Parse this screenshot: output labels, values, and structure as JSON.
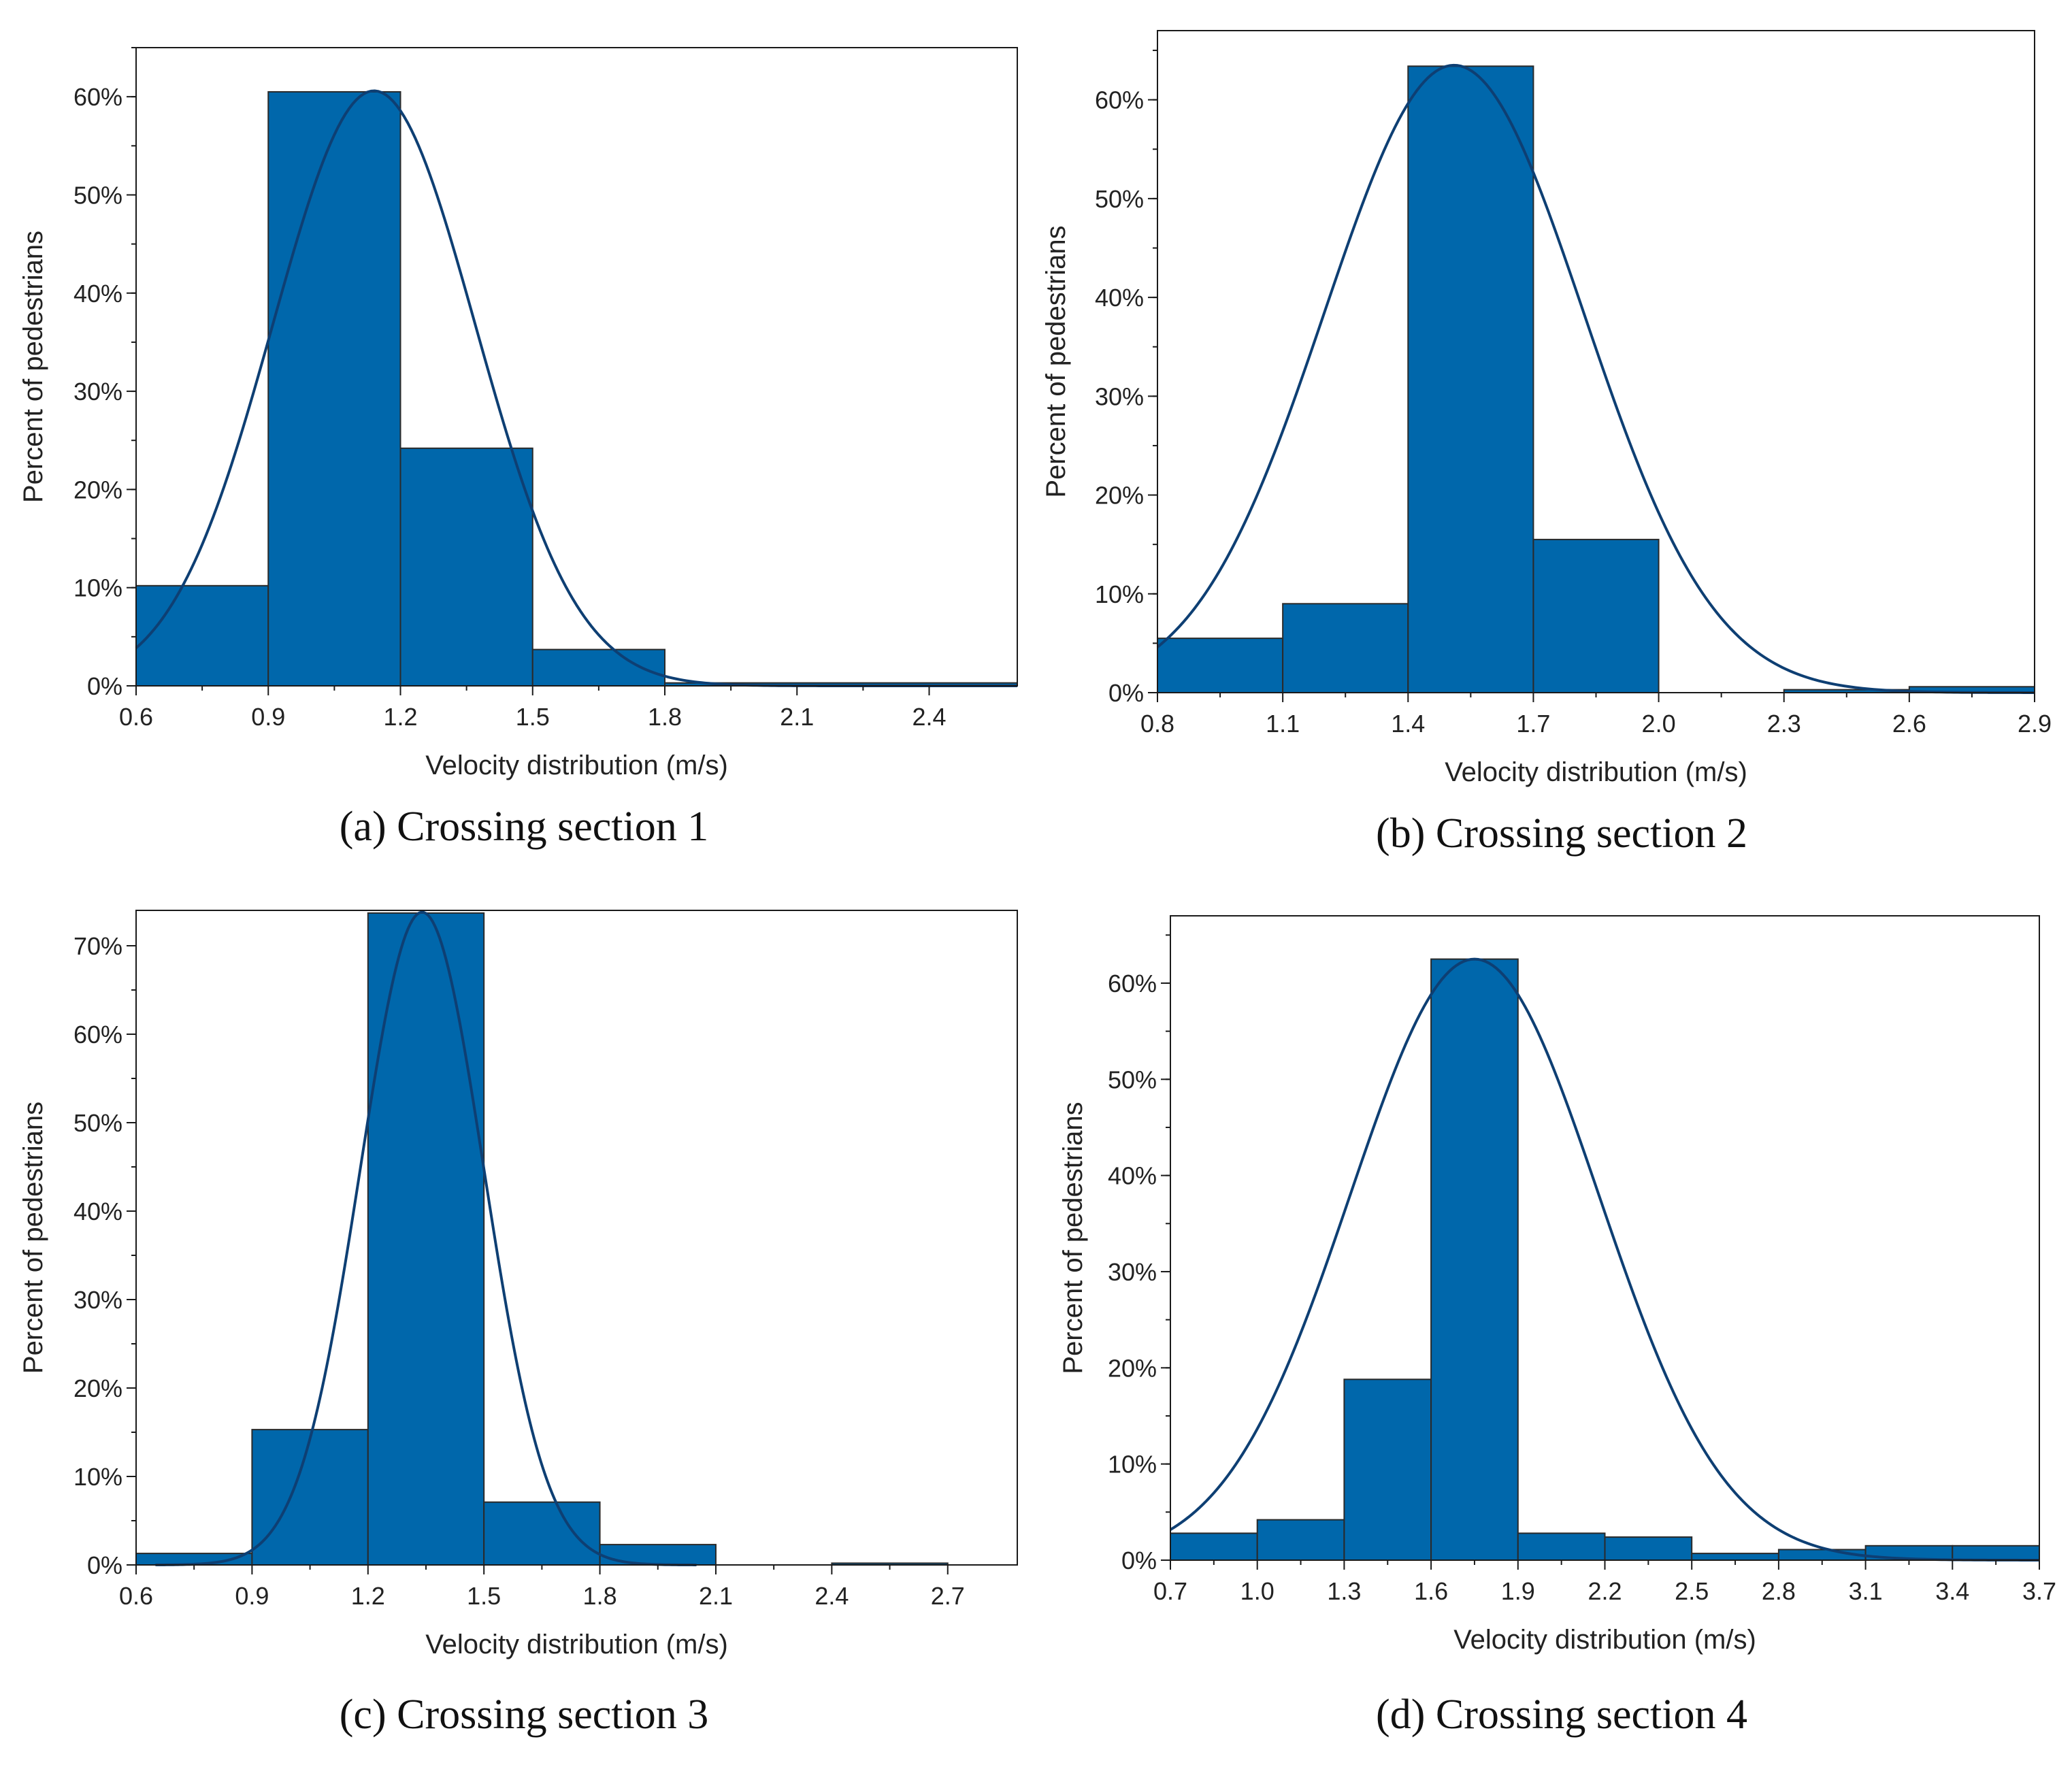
{
  "figure": {
    "colors": {
      "bar": "#0067ab",
      "curve": "#0e3f73",
      "axis": "#1a1a1a",
      "text": "#222222"
    }
  },
  "chart_data": [
    {
      "type": "bar",
      "panel": "a",
      "caption": "(a) Crossing section 1",
      "xlabel": "Velocity distribution (m/s)",
      "ylabel": "Percent of pedestrians",
      "xlim": [
        0.6,
        2.6
      ],
      "ylim": [
        0,
        0.65
      ],
      "xticks": [
        "0.6",
        "0.9",
        "1.2",
        "1.5",
        "1.8",
        "2.1",
        "2.4"
      ],
      "xtick_values": [
        0.6,
        0.9,
        1.2,
        1.5,
        1.8,
        2.1,
        2.4
      ],
      "yticks": [
        "0%",
        "10%",
        "20%",
        "30%",
        "40%",
        "50%",
        "60%"
      ],
      "ytick_values": [
        0,
        0.1,
        0.2,
        0.3,
        0.4,
        0.5,
        0.6
      ],
      "yminor": 0.05,
      "bins": [
        {
          "from": 0.6,
          "to": 0.9,
          "value": 0.102
        },
        {
          "from": 0.9,
          "to": 1.2,
          "value": 0.605
        },
        {
          "from": 1.2,
          "to": 1.5,
          "value": 0.242
        },
        {
          "from": 1.5,
          "to": 1.8,
          "value": 0.037
        },
        {
          "from": 1.8,
          "to": 2.6,
          "value": 0.003
        }
      ],
      "fit": {
        "type": "normal",
        "mean": 1.14,
        "sd": 0.23,
        "peak": 0.606,
        "range": [
          0.6,
          2.6
        ]
      }
    },
    {
      "type": "bar",
      "panel": "b",
      "caption": "(b) Crossing section 2",
      "xlabel": "Velocity distribution (m/s)",
      "ylabel": "Percent of pedestrians",
      "xlim": [
        0.8,
        2.9
      ],
      "ylim": [
        0,
        0.67
      ],
      "xticks": [
        "0.8",
        "1.1",
        "1.4",
        "1.7",
        "2.0",
        "2.3",
        "2.6",
        "2.9"
      ],
      "xtick_values": [
        0.8,
        1.1,
        1.4,
        1.7,
        2.0,
        2.3,
        2.6,
        2.9
      ],
      "yticks": [
        "0%",
        "10%",
        "20%",
        "30%",
        "40%",
        "50%",
        "60%"
      ],
      "ytick_values": [
        0,
        0.1,
        0.2,
        0.3,
        0.4,
        0.5,
        0.6
      ],
      "yminor": 0.05,
      "bins": [
        {
          "from": 0.8,
          "to": 1.1,
          "value": 0.055
        },
        {
          "from": 1.1,
          "to": 1.4,
          "value": 0.09
        },
        {
          "from": 1.4,
          "to": 1.7,
          "value": 0.634
        },
        {
          "from": 1.7,
          "to": 2.0,
          "value": 0.155
        },
        {
          "from": 2.3,
          "to": 2.6,
          "value": 0.003
        },
        {
          "from": 2.6,
          "to": 2.9,
          "value": 0.006
        }
      ],
      "fit": {
        "type": "normal",
        "mean": 1.51,
        "sd": 0.31,
        "peak": 0.635,
        "range": [
          0.8,
          2.9
        ]
      }
    },
    {
      "type": "bar",
      "panel": "c",
      "caption": "(c) Crossing section 3",
      "xlabel": "Velocity distribution (m/s)",
      "ylabel": "Percent of pedestrians",
      "xlim": [
        0.6,
        2.88
      ],
      "ylim": [
        0,
        0.74
      ],
      "xticks": [
        "0.6",
        "0.9",
        "1.2",
        "1.5",
        "1.8",
        "2.1",
        "2.4",
        "2.7"
      ],
      "xtick_values": [
        0.6,
        0.9,
        1.2,
        1.5,
        1.8,
        2.1,
        2.4,
        2.7
      ],
      "yticks": [
        "0%",
        "10%",
        "20%",
        "30%",
        "40%",
        "50%",
        "60%",
        "70%"
      ],
      "ytick_values": [
        0,
        0.1,
        0.2,
        0.3,
        0.4,
        0.5,
        0.6,
        0.7
      ],
      "yminor": 0.05,
      "bins": [
        {
          "from": 0.6,
          "to": 0.9,
          "value": 0.013
        },
        {
          "from": 0.9,
          "to": 1.2,
          "value": 0.153
        },
        {
          "from": 1.2,
          "to": 1.5,
          "value": 0.737
        },
        {
          "from": 1.5,
          "to": 1.8,
          "value": 0.071
        },
        {
          "from": 1.8,
          "to": 2.1,
          "value": 0.023
        },
        {
          "from": 2.4,
          "to": 2.7,
          "value": 0.002
        }
      ],
      "fit": {
        "type": "normal",
        "mean": 1.34,
        "sd": 0.16,
        "peak": 0.738,
        "range": [
          0.65,
          2.05
        ]
      }
    },
    {
      "type": "bar",
      "panel": "d",
      "caption": "(d) Crossing section 4",
      "xlabel": "Velocity distribution (m/s)",
      "ylabel": "Percent of pedestrians",
      "xlim": [
        0.7,
        3.7
      ],
      "ylim": [
        0,
        0.67
      ],
      "xticks": [
        "0.7",
        "1.0",
        "1.3",
        "1.6",
        "1.9",
        "2.2",
        "2.5",
        "2.8",
        "3.1",
        "3.4",
        "3.7"
      ],
      "xtick_values": [
        0.7,
        1.0,
        1.3,
        1.6,
        1.9,
        2.2,
        2.5,
        2.8,
        3.1,
        3.4,
        3.7
      ],
      "yticks": [
        "0%",
        "10%",
        "20%",
        "30%",
        "40%",
        "50%",
        "60%"
      ],
      "ytick_values": [
        0,
        0.1,
        0.2,
        0.3,
        0.4,
        0.5,
        0.6
      ],
      "yminor": 0.05,
      "bins": [
        {
          "from": 0.7,
          "to": 1.0,
          "value": 0.028
        },
        {
          "from": 1.0,
          "to": 1.3,
          "value": 0.042
        },
        {
          "from": 1.3,
          "to": 1.6,
          "value": 0.188
        },
        {
          "from": 1.6,
          "to": 1.9,
          "value": 0.625
        },
        {
          "from": 1.9,
          "to": 2.2,
          "value": 0.028
        },
        {
          "from": 2.2,
          "to": 2.5,
          "value": 0.024
        },
        {
          "from": 2.5,
          "to": 2.8,
          "value": 0.007
        },
        {
          "from": 2.8,
          "to": 3.1,
          "value": 0.011
        },
        {
          "from": 3.1,
          "to": 3.4,
          "value": 0.015
        },
        {
          "from": 3.4,
          "to": 3.7,
          "value": 0.015
        }
      ],
      "fit": {
        "type": "normal",
        "mean": 1.75,
        "sd": 0.43,
        "peak": 0.625,
        "range": [
          0.7,
          3.7
        ]
      }
    }
  ]
}
